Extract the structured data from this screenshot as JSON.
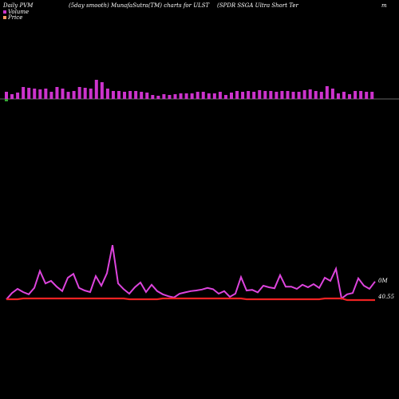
{
  "header": {
    "left": "Daily PVM",
    "mid": "(5day smooth) MunafaSutra(TM) charts for ULST",
    "right": "(SPDR SSGA Ultra  Short Ter",
    "far": "m"
  },
  "legend": [
    {
      "label": "Volume",
      "color": "#cc33cc"
    },
    {
      "label": "Price",
      "color": "#ff9966"
    }
  ],
  "colors": {
    "volume_bar": "#cc33cc",
    "volume_down": "#33aa33",
    "baseline": "#888888",
    "volume_line": "#dd44dd",
    "price_line": "#ee2222"
  },
  "chart_data": [
    {
      "type": "bar",
      "title": "Daily PVM",
      "series": [
        {
          "name": "Volume",
          "values": [
            9,
            6,
            8,
            15,
            14,
            13,
            12,
            13,
            9,
            15,
            13,
            9,
            10,
            15,
            14,
            13,
            24,
            21,
            13,
            10,
            10,
            9,
            10,
            10,
            9,
            8,
            5,
            4,
            6,
            5,
            6,
            7,
            7,
            7,
            9,
            9,
            7,
            7,
            9,
            5,
            8,
            10,
            9,
            10,
            9,
            11,
            10,
            10,
            9,
            10,
            10,
            9,
            9,
            11,
            12,
            10,
            9,
            16,
            13,
            7,
            9,
            6,
            10,
            10,
            9,
            9
          ]
        },
        {
          "name": "Volume-down",
          "values": [
            3,
            0,
            0,
            0,
            0,
            0,
            0,
            0,
            0,
            0,
            0,
            0,
            0,
            0,
            0,
            0,
            0,
            0,
            0,
            0,
            0,
            0,
            0,
            0,
            0,
            0,
            0,
            0,
            0,
            0,
            0,
            0,
            0,
            0,
            0,
            0,
            0,
            0,
            0,
            0,
            0,
            0,
            0,
            0,
            0,
            0,
            0,
            0,
            0,
            0,
            0,
            0,
            0,
            0,
            0,
            0,
            0,
            0,
            0,
            0,
            0,
            0,
            0,
            0,
            0,
            0
          ]
        }
      ]
    },
    {
      "type": "line",
      "series": [
        {
          "name": "Volume",
          "values": [
            0.02,
            0.22,
            0.35,
            0.25,
            0.18,
            0.38,
            0.91,
            0.52,
            0.6,
            0.42,
            0.28,
            0.7,
            0.82,
            0.38,
            0.3,
            0.25,
            0.75,
            0.45,
            0.84,
            1.72,
            0.52,
            0.34,
            0.2,
            0.4,
            0.55,
            0.25,
            0.48,
            0.28,
            0.18,
            0.12,
            0.08,
            0.2,
            0.24,
            0.28,
            0.3,
            0.33,
            0.38,
            0.34,
            0.2,
            0.28,
            0.1,
            0.2,
            0.72,
            0.3,
            0.32,
            0.24,
            0.45,
            0.4,
            0.37,
            0.78,
            0.42,
            0.42,
            0.35,
            0.48,
            0.4,
            0.5,
            0.38,
            0.7,
            0.6,
            0.98,
            0.05,
            0.18,
            0.22,
            0.68,
            0.45,
            0.35,
            0.58
          ]
        },
        {
          "name": "Price",
          "values": [
            40.55,
            40.55,
            40.55,
            40.56,
            40.56,
            40.56,
            40.56,
            40.56,
            40.56,
            40.56,
            40.56,
            40.56,
            40.56,
            40.56,
            40.56,
            40.56,
            40.56,
            40.56,
            40.56,
            40.56,
            40.56,
            40.56,
            40.55,
            40.55,
            40.55,
            40.55,
            40.55,
            40.55,
            40.56,
            40.56,
            40.56,
            40.56,
            40.56,
            40.56,
            40.56,
            40.56,
            40.56,
            40.56,
            40.56,
            40.56,
            40.56,
            40.56,
            40.56,
            40.55,
            40.55,
            40.55,
            40.55,
            40.55,
            40.55,
            40.55,
            40.55,
            40.55,
            40.55,
            40.55,
            40.55,
            40.55,
            40.55,
            40.56,
            40.56,
            40.56,
            40.56,
            40.54,
            40.54,
            40.54,
            40.54,
            40.54,
            40.54
          ]
        }
      ],
      "annotations": [
        "0M",
        "40.55"
      ]
    }
  ]
}
